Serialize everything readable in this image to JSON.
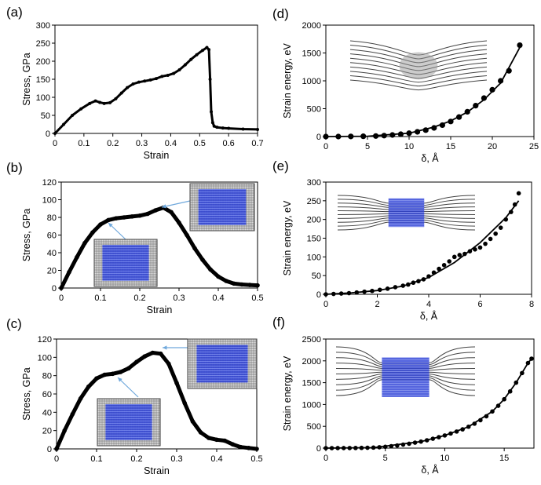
{
  "chart_data": [
    {
      "panel": "(a)",
      "type": "line",
      "xlabel": "Strain",
      "ylabel": "Stress, GPa",
      "xlim": [
        0,
        0.7
      ],
      "ylim": [
        0,
        300
      ],
      "xticks": [
        "0",
        "0.1",
        "0.2",
        "0.3",
        "0.4",
        "0.5",
        "0.6",
        "0.7"
      ],
      "yticks": [
        "0",
        "50",
        "100",
        "150",
        "200",
        "250",
        "300"
      ],
      "series": [
        {
          "x": [
            0,
            0.03,
            0.06,
            0.09,
            0.12,
            0.14,
            0.155,
            0.17,
            0.19,
            0.21,
            0.23,
            0.25,
            0.27,
            0.29,
            0.31,
            0.33,
            0.35,
            0.37,
            0.39,
            0.41,
            0.43,
            0.45,
            0.47,
            0.49,
            0.51,
            0.525,
            0.532,
            0.536,
            0.54,
            0.545,
            0.55,
            0.56,
            0.58,
            0.6,
            0.65,
            0.7
          ],
          "y": [
            0,
            25,
            50,
            68,
            83,
            90,
            86,
            83,
            85,
            96,
            112,
            127,
            137,
            142,
            145,
            148,
            152,
            158,
            161,
            166,
            176,
            190,
            205,
            218,
            230,
            238,
            232,
            150,
            60,
            30,
            20,
            17,
            15,
            14,
            12,
            11
          ]
        }
      ]
    },
    {
      "panel": "(b)",
      "type": "line",
      "xlabel": "Strain",
      "ylabel": "Stress, GPa",
      "xlim": [
        0,
        0.5
      ],
      "ylim": [
        0,
        120
      ],
      "xticks": [
        "0",
        "0.1",
        "0.2",
        "0.3",
        "0.4",
        "0.5"
      ],
      "yticks": [
        "0",
        "20",
        "40",
        "60",
        "80",
        "100",
        "120"
      ],
      "series": [
        {
          "x": [
            0,
            0.02,
            0.04,
            0.06,
            0.08,
            0.1,
            0.12,
            0.14,
            0.16,
            0.18,
            0.2,
            0.22,
            0.24,
            0.26,
            0.28,
            0.3,
            0.32,
            0.34,
            0.36,
            0.38,
            0.4,
            0.42,
            0.44,
            0.46,
            0.48,
            0.5
          ],
          "y": [
            0,
            18,
            35,
            51,
            63,
            72,
            77,
            79,
            80,
            81,
            82,
            84,
            88,
            91,
            86,
            74,
            60,
            45,
            32,
            21,
            13,
            8,
            5,
            4,
            3.5,
            3
          ]
        }
      ]
    },
    {
      "panel": "(c)",
      "type": "line",
      "xlabel": "Strain",
      "ylabel": "Stress, GPa",
      "xlim": [
        0,
        0.5
      ],
      "ylim": [
        0,
        120
      ],
      "xticks": [
        "0",
        "0.1",
        "0.2",
        "0.3",
        "0.4",
        "0.5"
      ],
      "yticks": [
        "0",
        "20",
        "40",
        "60",
        "80",
        "100",
        "120"
      ],
      "series": [
        {
          "x": [
            0,
            0.02,
            0.04,
            0.06,
            0.08,
            0.1,
            0.12,
            0.14,
            0.16,
            0.18,
            0.2,
            0.22,
            0.24,
            0.26,
            0.28,
            0.3,
            0.32,
            0.34,
            0.36,
            0.38,
            0.4,
            0.42,
            0.44,
            0.46,
            0.48,
            0.5
          ],
          "y": [
            0,
            20,
            38,
            55,
            68,
            77,
            81,
            82,
            84,
            88,
            95,
            101,
            105,
            104,
            93,
            72,
            50,
            30,
            18,
            12,
            10,
            9,
            5,
            2,
            1,
            0
          ]
        }
      ]
    },
    {
      "panel": "(d)",
      "type": "scatter",
      "xlabel": "δ, Å",
      "ylabel": "Strain energy, eV",
      "xlim": [
        0,
        25
      ],
      "ylim": [
        0,
        2000
      ],
      "xticks": [
        "0",
        "5",
        "10",
        "15",
        "20",
        "25"
      ],
      "yticks": [
        "0",
        "500",
        "1000",
        "1500",
        "2000"
      ],
      "points": {
        "x": [
          0,
          1.5,
          3,
          4.5,
          6,
          7,
          8,
          9,
          10,
          11,
          12,
          13,
          14,
          15,
          16,
          17,
          18,
          19,
          20,
          21,
          22,
          23.3
        ],
        "y": [
          0,
          0,
          2,
          5,
          10,
          17,
          28,
          42,
          60,
          85,
          115,
          155,
          205,
          270,
          350,
          445,
          555,
          690,
          840,
          1000,
          1180,
          1640
        ]
      },
      "fit": {
        "x": [
          0,
          5,
          10,
          13,
          15,
          17,
          19,
          21,
          23.3
        ],
        "y": [
          0,
          5,
          60,
          170,
          280,
          440,
          660,
          960,
          1600
        ]
      }
    },
    {
      "panel": "(e)",
      "type": "scatter",
      "xlabel": "δ, Å",
      "ylabel": "Strain energy, eV",
      "xlim": [
        0,
        8
      ],
      "ylim": [
        0,
        300
      ],
      "xticks": [
        "0",
        "2",
        "4",
        "6",
        "8"
      ],
      "yticks": [
        "0",
        "50",
        "100",
        "150",
        "200",
        "250",
        "300"
      ],
      "points": {
        "x": [
          0,
          0.3,
          0.6,
          0.9,
          1.2,
          1.5,
          1.8,
          2.1,
          2.4,
          2.7,
          3.0,
          3.2,
          3.4,
          3.6,
          3.8,
          4.0,
          4.2,
          4.4,
          4.6,
          4.8,
          5.0,
          5.2,
          5.4,
          5.6,
          5.8,
          6.0,
          6.2,
          6.4,
          6.6,
          6.8,
          7.0,
          7.2,
          7.35,
          7.5
        ],
        "y": [
          0,
          1,
          2,
          3,
          5,
          7,
          9,
          12,
          15,
          19,
          23,
          26,
          31,
          35,
          40,
          48,
          58,
          68,
          78,
          88,
          100,
          105,
          108,
          115,
          120,
          125,
          135,
          148,
          162,
          178,
          200,
          220,
          240,
          270
        ]
      },
      "fit": {
        "x": [
          0,
          1,
          2,
          3,
          4,
          5,
          6,
          7,
          7.5
        ],
        "y": [
          0,
          4,
          10,
          22,
          45,
          85,
          138,
          205,
          250
        ]
      }
    },
    {
      "panel": "(f)",
      "type": "scatter",
      "xlabel": "δ, Å",
      "ylabel": "Strain energy, eV",
      "xlim": [
        0,
        17.5
      ],
      "ylim": [
        0,
        2500
      ],
      "xticks": [
        "0",
        "5",
        "10",
        "15"
      ],
      "yticks": [
        "0",
        "500",
        "1000",
        "1500",
        "2000",
        "2500"
      ],
      "points": {
        "x": [
          0,
          0.5,
          1,
          1.5,
          2,
          2.5,
          3,
          3.5,
          4,
          4.5,
          5,
          5.5,
          6,
          6.5,
          7,
          7.5,
          8,
          8.5,
          9,
          9.5,
          10,
          10.5,
          11,
          11.5,
          12,
          12.5,
          13,
          13.5,
          14,
          14.5,
          15,
          15.5,
          16,
          16.5,
          17,
          17.3
        ],
        "y": [
          0,
          0,
          1,
          1,
          2,
          3,
          5,
          8,
          12,
          20,
          30,
          45,
          60,
          80,
          100,
          125,
          150,
          180,
          215,
          250,
          290,
          335,
          380,
          430,
          490,
          560,
          640,
          730,
          840,
          970,
          1120,
          1300,
          1500,
          1720,
          1950,
          2050
        ]
      },
      "fit": {
        "x": [
          0,
          4,
          8,
          10,
          12,
          14,
          15,
          16,
          17,
          17.3
        ],
        "y": [
          0,
          10,
          150,
          290,
          490,
          840,
          1120,
          1500,
          1950,
          2050
        ]
      }
    }
  ],
  "style": {
    "marker_color": "#000000",
    "line_color": "#000000",
    "lattice_blue": "#2b3fd6",
    "lattice_gray": "#555555"
  }
}
